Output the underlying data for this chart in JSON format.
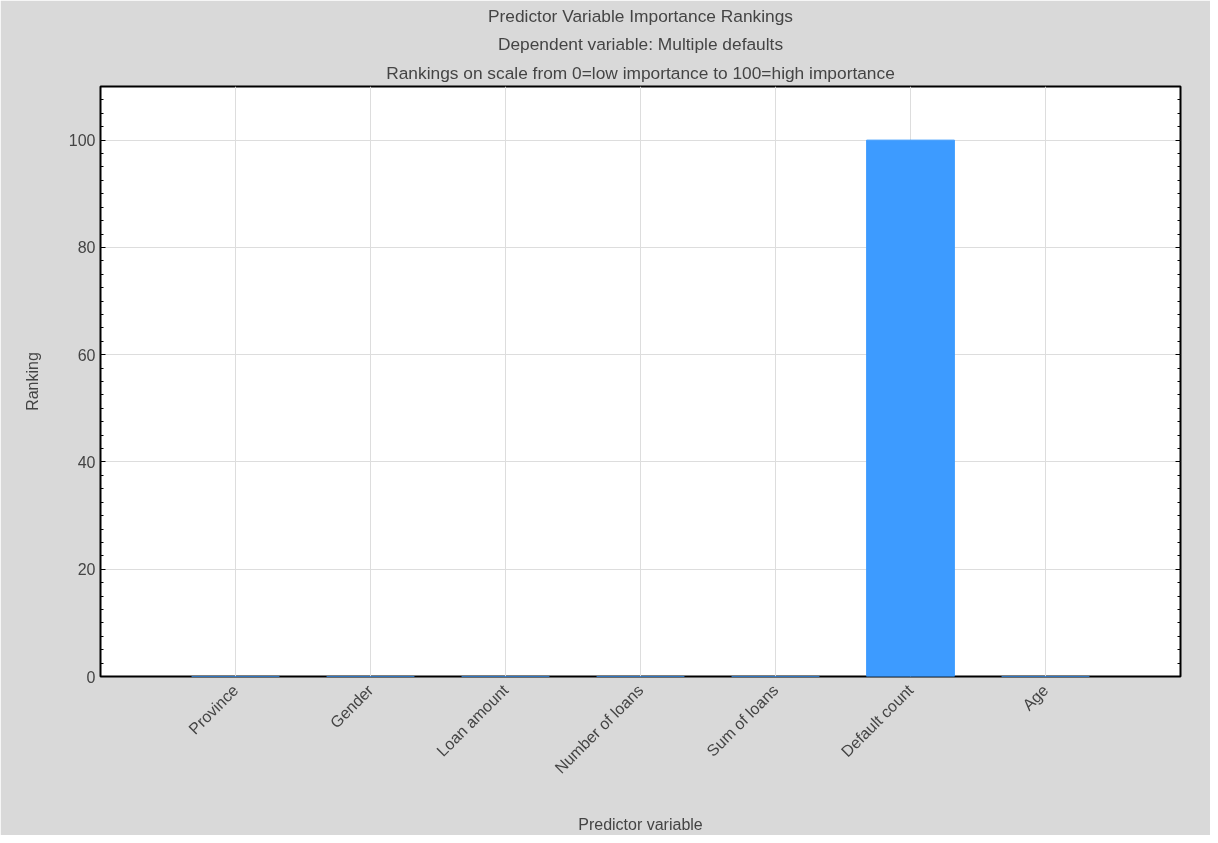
{
  "chart_data": {
    "type": "bar",
    "title": "Predictor Variable Importance Rankings",
    "subtitle": "Dependent variable: Multiple defaults",
    "annotations": [
      "Rankings on scale from 0=low importance to 100=high importance"
    ],
    "xlabel": "Predictor variable",
    "ylabel": "Ranking",
    "categories": [
      "Province",
      "Gender",
      "Loan amount",
      "Number of loans",
      "Sum of loans",
      "Default count",
      "Age"
    ],
    "values": [
      0,
      0,
      0,
      0,
      0,
      100,
      0
    ],
    "color": "#3d9bff",
    "ylim": [
      0,
      110
    ],
    "yticks": [
      0,
      20,
      40,
      60,
      80,
      100
    ],
    "grid": true
  }
}
